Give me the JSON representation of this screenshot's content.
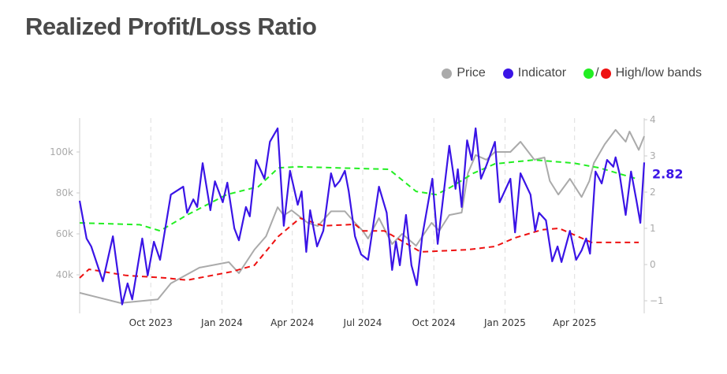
{
  "title": "Realized Profit/Loss Ratio",
  "legend": {
    "price": {
      "label": "Price",
      "color": "#aaaaaa"
    },
    "indicator": {
      "label": "Indicator",
      "color": "#3a14e6"
    },
    "bands": {
      "label": "High/low bands",
      "slash": "/",
      "high_color": "#22ee22",
      "low_color": "#ee1111"
    }
  },
  "chart_data": {
    "type": "line",
    "title": "Realized Profit/Loss Ratio",
    "x_range": [
      "2023-07-01",
      "2025-06-30"
    ],
    "x_ticks": [
      "Oct 2023",
      "Jan 2024",
      "Apr 2024",
      "Jul 2024",
      "Oct 2024",
      "Jan 2025",
      "Apr 2025"
    ],
    "x_tick_dates": [
      "2023-10-01",
      "2024-01-01",
      "2024-04-01",
      "2024-07-01",
      "2024-10-01",
      "2025-01-01",
      "2025-04-01"
    ],
    "left_axis": {
      "ticks": [
        "40k",
        "60k",
        "80k",
        "100k"
      ],
      "tick_values": [
        40000,
        60000,
        80000,
        100000
      ],
      "scale": "linear"
    },
    "right_axis": {
      "ticks": [
        "−1",
        "0",
        "1",
        "2",
        "3",
        "4"
      ],
      "tick_values": [
        -1,
        0,
        1,
        2,
        3,
        4
      ],
      "range": [
        -1.2,
        4
      ]
    },
    "grid": "vertical dashed at x ticks",
    "legend_position": "top-right",
    "last_value_label": "2.82",
    "series": [
      {
        "name": "Price",
        "axis": "left",
        "color": "#aaaaaa",
        "style": "solid",
        "points": [
          [
            "2023-07-01",
            31200
          ],
          [
            "2023-08-23",
            26200
          ],
          [
            "2023-10-10",
            28000
          ],
          [
            "2023-10-27",
            35800
          ],
          [
            "2023-12-03",
            43500
          ],
          [
            "2024-01-10",
            46200
          ],
          [
            "2024-01-23",
            40800
          ],
          [
            "2024-02-12",
            52300
          ],
          [
            "2024-02-27",
            58800
          ],
          [
            "2024-03-13",
            73000
          ],
          [
            "2024-03-21",
            69000
          ],
          [
            "2024-03-31",
            71500
          ],
          [
            "2024-04-21",
            65400
          ],
          [
            "2024-05-04",
            63800
          ],
          [
            "2024-05-21",
            71000
          ],
          [
            "2024-06-08",
            71000
          ],
          [
            "2024-06-21",
            65400
          ],
          [
            "2024-07-01",
            61500
          ],
          [
            "2024-07-08",
            57700
          ],
          [
            "2024-07-22",
            67700
          ],
          [
            "2024-08-08",
            55000
          ],
          [
            "2024-08-21",
            60000
          ],
          [
            "2024-09-08",
            54200
          ],
          [
            "2024-09-28",
            65400
          ],
          [
            "2024-10-08",
            61500
          ],
          [
            "2024-10-21",
            69200
          ],
          [
            "2024-11-06",
            70400
          ],
          [
            "2024-11-14",
            89600
          ],
          [
            "2024-11-24",
            98500
          ],
          [
            "2024-12-08",
            96200
          ],
          [
            "2024-12-19",
            100000
          ],
          [
            "2025-01-08",
            100000
          ],
          [
            "2025-01-21",
            105000
          ],
          [
            "2025-02-08",
            96200
          ],
          [
            "2025-02-21",
            97300
          ],
          [
            "2025-02-28",
            85800
          ],
          [
            "2025-03-11",
            79200
          ],
          [
            "2025-03-26",
            86900
          ],
          [
            "2025-04-10",
            78000
          ],
          [
            "2025-04-20",
            85800
          ],
          [
            "2025-04-26",
            94600
          ],
          [
            "2025-05-10",
            103800
          ],
          [
            "2025-05-24",
            110800
          ],
          [
            "2025-06-06",
            105000
          ],
          [
            "2025-06-11",
            110000
          ],
          [
            "2025-06-23",
            101000
          ],
          [
            "2025-06-30",
            107700
          ]
        ]
      },
      {
        "name": "Indicator",
        "axis": "right",
        "color": "#3a14e6",
        "style": "solid",
        "points": [
          [
            "2023-07-01",
            1.76
          ],
          [
            "2023-07-10",
            0.72
          ],
          [
            "2023-07-16",
            0.5
          ],
          [
            "2023-07-31",
            -0.46
          ],
          [
            "2023-08-13",
            0.78
          ],
          [
            "2023-08-25",
            -1.1
          ],
          [
            "2023-09-01",
            -0.52
          ],
          [
            "2023-09-07",
            -0.96
          ],
          [
            "2023-09-20",
            0.72
          ],
          [
            "2023-09-27",
            -0.3
          ],
          [
            "2023-10-05",
            0.63
          ],
          [
            "2023-10-13",
            0.13
          ],
          [
            "2023-10-27",
            1.93
          ],
          [
            "2023-11-12",
            2.15
          ],
          [
            "2023-11-17",
            1.43
          ],
          [
            "2023-11-25",
            1.8
          ],
          [
            "2023-11-30",
            1.59
          ],
          [
            "2023-12-07",
            2.8
          ],
          [
            "2023-12-17",
            1.5
          ],
          [
            "2023-12-23",
            2.3
          ],
          [
            "2024-01-02",
            1.72
          ],
          [
            "2024-01-08",
            2.26
          ],
          [
            "2024-01-17",
            1.0
          ],
          [
            "2024-01-23",
            0.67
          ],
          [
            "2024-02-01",
            1.59
          ],
          [
            "2024-02-06",
            1.33
          ],
          [
            "2024-02-14",
            2.89
          ],
          [
            "2024-02-25",
            2.37
          ],
          [
            "2024-03-03",
            3.39
          ],
          [
            "2024-03-13",
            3.76
          ],
          [
            "2024-03-21",
            1.07
          ],
          [
            "2024-03-29",
            2.59
          ],
          [
            "2024-04-08",
            1.65
          ],
          [
            "2024-04-13",
            2.02
          ],
          [
            "2024-04-19",
            0.35
          ],
          [
            "2024-04-24",
            1.5
          ],
          [
            "2024-05-03",
            0.5
          ],
          [
            "2024-05-11",
            0.93
          ],
          [
            "2024-05-21",
            2.52
          ],
          [
            "2024-05-26",
            2.15
          ],
          [
            "2024-06-01",
            2.3
          ],
          [
            "2024-06-08",
            2.59
          ],
          [
            "2024-06-13",
            2.02
          ],
          [
            "2024-06-21",
            0.78
          ],
          [
            "2024-06-29",
            0.28
          ],
          [
            "2024-07-08",
            0.13
          ],
          [
            "2024-07-22",
            2.15
          ],
          [
            "2024-08-01",
            1.43
          ],
          [
            "2024-08-08",
            -0.15
          ],
          [
            "2024-08-13",
            0.63
          ],
          [
            "2024-08-18",
            -0.02
          ],
          [
            "2024-08-26",
            1.37
          ],
          [
            "2024-09-02",
            -0.02
          ],
          [
            "2024-09-09",
            -0.57
          ],
          [
            "2024-09-16",
            0.78
          ],
          [
            "2024-09-29",
            2.37
          ],
          [
            "2024-10-06",
            0.57
          ],
          [
            "2024-10-21",
            3.28
          ],
          [
            "2024-10-29",
            2.09
          ],
          [
            "2024-11-01",
            2.63
          ],
          [
            "2024-11-06",
            1.59
          ],
          [
            "2024-11-13",
            3.43
          ],
          [
            "2024-11-19",
            2.89
          ],
          [
            "2024-11-24",
            3.76
          ],
          [
            "2024-12-01",
            2.37
          ],
          [
            "2024-12-08",
            2.74
          ],
          [
            "2024-12-19",
            3.39
          ],
          [
            "2024-12-25",
            1.72
          ],
          [
            "2025-01-08",
            2.37
          ],
          [
            "2025-01-14",
            0.89
          ],
          [
            "2025-01-21",
            2.52
          ],
          [
            "2025-02-03",
            1.93
          ],
          [
            "2025-02-09",
            0.93
          ],
          [
            "2025-02-14",
            1.43
          ],
          [
            "2025-02-23",
            1.22
          ],
          [
            "2025-03-03",
            0.09
          ],
          [
            "2025-03-10",
            0.5
          ],
          [
            "2025-03-15",
            0.07
          ],
          [
            "2025-03-26",
            0.93
          ],
          [
            "2025-04-03",
            0.13
          ],
          [
            "2025-04-10",
            0.39
          ],
          [
            "2025-04-16",
            0.72
          ],
          [
            "2025-04-21",
            0.3
          ],
          [
            "2025-04-28",
            2.57
          ],
          [
            "2025-05-06",
            2.24
          ],
          [
            "2025-05-13",
            2.89
          ],
          [
            "2025-05-21",
            2.7
          ],
          [
            "2025-05-24",
            2.96
          ],
          [
            "2025-05-29",
            2.52
          ],
          [
            "2025-06-06",
            1.37
          ],
          [
            "2025-06-13",
            2.57
          ],
          [
            "2025-06-20",
            1.76
          ],
          [
            "2025-06-25",
            1.15
          ],
          [
            "2025-06-30",
            2.82
          ]
        ]
      },
      {
        "name": "High band",
        "axis": "right",
        "color": "#22ee22",
        "style": "dashed",
        "points": [
          [
            "2023-07-01",
            1.15
          ],
          [
            "2023-09-17",
            1.1
          ],
          [
            "2023-10-13",
            0.93
          ],
          [
            "2023-11-17",
            1.37
          ],
          [
            "2024-01-07",
            1.93
          ],
          [
            "2024-02-17",
            2.15
          ],
          [
            "2024-03-14",
            2.67
          ],
          [
            "2024-04-08",
            2.7
          ],
          [
            "2024-07-01",
            2.65
          ],
          [
            "2024-08-04",
            2.63
          ],
          [
            "2024-09-08",
            2.02
          ],
          [
            "2024-10-04",
            1.93
          ],
          [
            "2024-10-24",
            2.15
          ],
          [
            "2024-11-21",
            2.52
          ],
          [
            "2024-12-19",
            2.78
          ],
          [
            "2025-02-08",
            2.89
          ],
          [
            "2025-03-31",
            2.8
          ],
          [
            "2025-05-03",
            2.67
          ],
          [
            "2025-06-23",
            2.35
          ]
        ]
      },
      {
        "name": "Low band",
        "axis": "right",
        "color": "#ee1111",
        "style": "dashed",
        "points": [
          [
            "2023-07-01",
            -0.37
          ],
          [
            "2023-07-13",
            -0.13
          ],
          [
            "2023-08-30",
            -0.3
          ],
          [
            "2023-10-20",
            -0.37
          ],
          [
            "2023-11-17",
            -0.43
          ],
          [
            "2024-01-13",
            -0.2
          ],
          [
            "2024-02-12",
            -0.02
          ],
          [
            "2024-03-14",
            0.78
          ],
          [
            "2024-04-11",
            1.28
          ],
          [
            "2024-05-11",
            1.07
          ],
          [
            "2024-06-21",
            1.11
          ],
          [
            "2024-07-01",
            0.93
          ],
          [
            "2024-07-29",
            0.93
          ],
          [
            "2024-09-14",
            0.35
          ],
          [
            "2024-11-14",
            0.41
          ],
          [
            "2024-12-19",
            0.5
          ],
          [
            "2025-01-14",
            0.74
          ],
          [
            "2025-02-18",
            0.96
          ],
          [
            "2025-03-12",
            1.0
          ],
          [
            "2025-04-23",
            0.61
          ],
          [
            "2025-06-23",
            0.61
          ]
        ]
      }
    ]
  }
}
